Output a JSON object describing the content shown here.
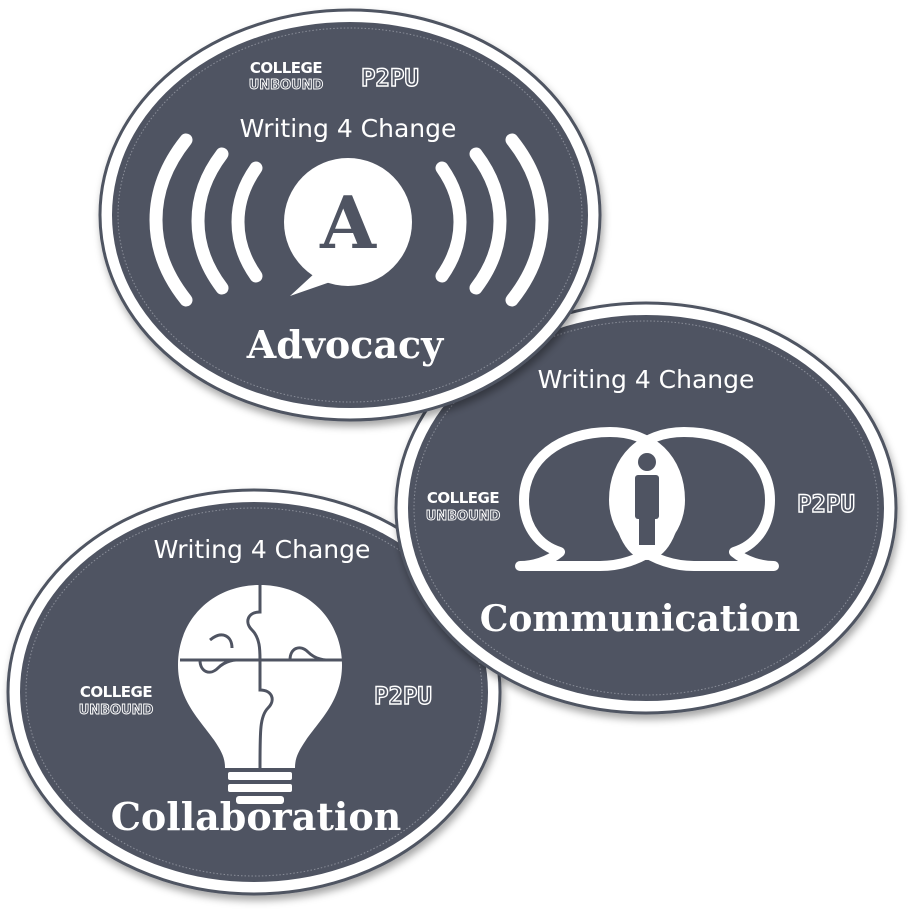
{
  "colors": {
    "badge_fill": "#4f5462",
    "badge_rim": "#ffffff",
    "badge_outline": "#4f5462",
    "icon": "#ffffff"
  },
  "brand": {
    "college_top": "COLLEGE",
    "college_bottom": "UNBOUND",
    "p2pu": "P2PU"
  },
  "badges": [
    {
      "tagline": "Writing 4 Change",
      "title": "Advocacy",
      "icon": "broadcast-speech-bubble-icon",
      "icon_letter": "A"
    },
    {
      "tagline": "Writing 4 Change",
      "title": "Communication",
      "icon": "info-speech-bubbles-icon"
    },
    {
      "tagline": "Writing 4 Change",
      "title": "Collaboration",
      "icon": "puzzle-lightbulb-icon"
    }
  ]
}
